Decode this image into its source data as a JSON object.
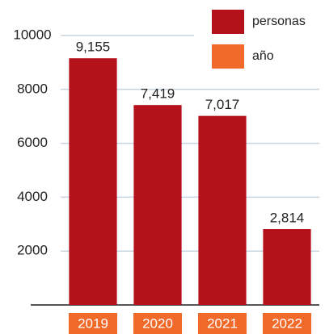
{
  "chart_data": {
    "type": "bar",
    "categories": [
      "2019",
      "2020",
      "2021",
      "2022"
    ],
    "series": [
      {
        "name": "personas",
        "color": "#b3121b",
        "values": [
          9155,
          7419,
          7017,
          2814
        ],
        "value_labels": [
          "9,155",
          "7,419",
          "7,017",
          "2,814"
        ]
      }
    ],
    "category_legend": {
      "name": "año",
      "color": "#f26a2a"
    },
    "ylim": [
      0,
      10000
    ],
    "yticks": [
      2000,
      4000,
      6000,
      8000,
      10000
    ],
    "grid": true
  }
}
